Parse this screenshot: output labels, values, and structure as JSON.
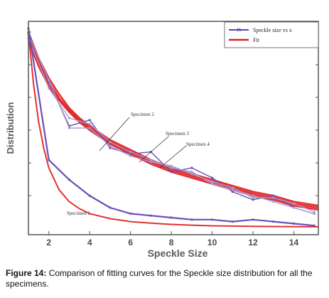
{
  "caption": {
    "label": "Figure 14:",
    "text": " Comparison of fitting curves for the Speckle size distribution for all the specimens."
  },
  "chart_data": {
    "type": "line",
    "xlabel": "Speckle Size",
    "ylabel": "Distribution",
    "xlim": [
      1,
      15.2
    ],
    "ylim": [
      0,
      1
    ],
    "xticks": [
      2,
      4,
      6,
      8,
      10,
      12,
      14
    ],
    "legend": {
      "position": "top-right",
      "entries": [
        {
          "label": "Speckle size vs x",
          "color": "#5b3fa8"
        },
        {
          "label": "Fit",
          "color": "#e02020"
        }
      ]
    },
    "annotations": [
      "Specimen 2",
      "Specimen 3",
      "Specimen 4",
      "Specimen 1"
    ],
    "colors": {
      "data": "#6a4fb8",
      "data_light": "#a99ad0",
      "fit": "#e02020"
    },
    "series": [
      {
        "x": [
          1,
          2,
          3,
          4,
          5,
          6,
          7,
          8,
          9,
          10,
          11,
          12,
          13,
          14,
          15
        ],
        "values": [
          0.98,
          0.73,
          0.51,
          0.54,
          0.4,
          0.37,
          0.38,
          0.28,
          0.3,
          0.25,
          0.18,
          0.14,
          0.16,
          0.1,
          0.07
        ]
      },
      {
        "x": [
          1,
          2,
          3,
          4,
          5,
          6,
          7,
          8,
          9,
          10,
          11,
          12,
          13,
          14,
          15
        ],
        "values": [
          0.95,
          0.7,
          0.55,
          0.52,
          0.43,
          0.38,
          0.34,
          0.3,
          0.28,
          0.22,
          0.19,
          0.16,
          0.13,
          0.1,
          0.07
        ]
      },
      {
        "x": [
          1,
          2,
          3,
          4,
          5,
          6,
          7,
          8,
          9,
          10,
          11,
          12,
          13,
          14,
          15
        ],
        "values": [
          0.97,
          0.74,
          0.5,
          0.5,
          0.41,
          0.36,
          0.33,
          0.31,
          0.27,
          0.23,
          0.2,
          0.15,
          0.15,
          0.12,
          0.08
        ]
      },
      {
        "x": [
          1,
          2,
          3,
          4,
          5,
          6,
          7,
          8,
          9,
          10,
          11,
          12,
          13,
          14,
          15
        ],
        "values": [
          1.0,
          0.34,
          0.24,
          0.16,
          0.1,
          0.07,
          0.06,
          0.05,
          0.04,
          0.04,
          0.03,
          0.04,
          0.03,
          0.02,
          0.01
        ]
      }
    ],
    "fits": [
      {
        "x": [
          1,
          1.5,
          2,
          2.5,
          3,
          3.5,
          4,
          5,
          6,
          7,
          8,
          9,
          10,
          11,
          12,
          13,
          14,
          15.2
        ],
        "values": [
          0.96,
          0.83,
          0.73,
          0.65,
          0.59,
          0.54,
          0.5,
          0.43,
          0.38,
          0.33,
          0.29,
          0.26,
          0.23,
          0.2,
          0.17,
          0.15,
          0.12,
          0.1
        ]
      },
      {
        "x": [
          1,
          1.5,
          2,
          2.5,
          3,
          3.5,
          4,
          5,
          6,
          7,
          8,
          9,
          10,
          11,
          12,
          13,
          14,
          15.2
        ],
        "values": [
          0.94,
          0.81,
          0.71,
          0.64,
          0.58,
          0.53,
          0.49,
          0.42,
          0.37,
          0.32,
          0.28,
          0.25,
          0.22,
          0.19,
          0.16,
          0.14,
          0.11,
          0.09
        ]
      },
      {
        "x": [
          1,
          1.5,
          2,
          2.5,
          3,
          3.5,
          4,
          5,
          6,
          7,
          8,
          9,
          10,
          11,
          12,
          13,
          14,
          15.2
        ],
        "values": [
          0.98,
          0.85,
          0.75,
          0.67,
          0.6,
          0.55,
          0.51,
          0.44,
          0.39,
          0.34,
          0.3,
          0.27,
          0.24,
          0.21,
          0.18,
          0.16,
          0.13,
          0.11
        ]
      },
      {
        "x": [
          1,
          1.25,
          1.5,
          1.75,
          2,
          2.5,
          3,
          3.5,
          4,
          5,
          6,
          7,
          8,
          9,
          10,
          12,
          15.2
        ],
        "values": [
          0.98,
          0.72,
          0.53,
          0.4,
          0.3,
          0.19,
          0.13,
          0.095,
          0.07,
          0.045,
          0.03,
          0.022,
          0.016,
          0.012,
          0.009,
          0.006,
          0.004
        ]
      }
    ]
  }
}
